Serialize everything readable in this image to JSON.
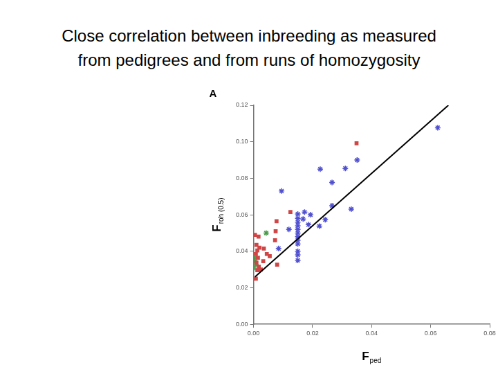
{
  "chart_data": {
    "type": "scatter",
    "title": [
      "Close correlation between inbreeding as measured",
      "from pedigrees and from runs of homozygosity"
    ],
    "annotation": "A",
    "xlabel": {
      "text": "F",
      "subscript": "ped"
    },
    "ylabel": {
      "text": "F",
      "subscript": "roh (0.5)"
    },
    "xlim": [
      0,
      0.08
    ],
    "xticks": [
      {
        "value": 0,
        "label": "0.00"
      },
      {
        "value": 0.02,
        "label": "0.02"
      },
      {
        "value": 0.04,
        "label": "0.04"
      },
      {
        "value": 0.06,
        "label": "0.06"
      },
      {
        "value": 0.08,
        "label": "0.08"
      }
    ],
    "ylim": [
      0,
      0.12
    ],
    "yticks": [
      {
        "value": 0,
        "label": "0.00"
      },
      {
        "value": 0.02,
        "label": "0.02"
      },
      {
        "value": 0.04,
        "label": "0.04"
      },
      {
        "value": 0.06,
        "label": "0.06"
      },
      {
        "value": 0.08,
        "label": "0.08"
      },
      {
        "value": 0.1,
        "label": "0.10"
      },
      {
        "value": 0.12,
        "label": "0.12"
      }
    ],
    "grid": false,
    "series": [
      {
        "color": "#d04545",
        "marker": "square",
        "x": [
          0.0349,
          0.0125,
          0.0075,
          0.0078,
          0.0073,
          0.008,
          0.0055,
          0.0045,
          0.0005,
          0.0017,
          0.001,
          0.002,
          0.0013,
          0.0008,
          0.0015,
          0.001,
          0.0018,
          0.0013,
          0.0008,
          0.0025,
          0.0033,
          0.0035
        ],
        "values": [
          0.0992,
          0.0615,
          0.051,
          0.0565,
          0.046,
          0.0327,
          0.0373,
          0.0385,
          0.049,
          0.048,
          0.0435,
          0.042,
          0.0404,
          0.0385,
          0.0365,
          0.0338,
          0.0315,
          0.0296,
          0.025,
          0.03,
          0.0346,
          0.0415
        ]
      },
      {
        "color": "#5050d0",
        "marker": "star",
        "x": [
          0.0624,
          0.0351,
          0.0311,
          0.0331,
          0.0226,
          0.0266,
          0.0095,
          0.0266,
          0.0243,
          0.0223,
          0.015,
          0.015,
          0.015,
          0.015,
          0.015,
          0.015,
          0.015,
          0.015,
          0.015,
          0.015,
          0.015,
          0.015,
          0.0173,
          0.0193,
          0.0168,
          0.0186,
          0.012,
          0.0085
        ],
        "values": [
          0.1077,
          0.09,
          0.0854,
          0.0631,
          0.085,
          0.0777,
          0.073,
          0.065,
          0.0573,
          0.0538,
          0.0604,
          0.058,
          0.056,
          0.054,
          0.052,
          0.05,
          0.048,
          0.046,
          0.044,
          0.04,
          0.038,
          0.035,
          0.0615,
          0.06,
          0.0577,
          0.0546,
          0.052,
          0.0415
        ]
      },
      {
        "color": "#4a9a4a",
        "marker": "star",
        "x": [
          0.0003,
          0.0005,
          0.0008,
          0.0,
          0.0043
        ],
        "values": [
          0.0365,
          0.0346,
          0.0327,
          0.0308,
          0.05
        ]
      },
      {
        "type": "line",
        "color": "#000000",
        "marker": "none",
        "line_style": "solid",
        "x": [
          0.0005,
          0.066
        ],
        "values": [
          0.026,
          0.12
        ]
      }
    ]
  }
}
